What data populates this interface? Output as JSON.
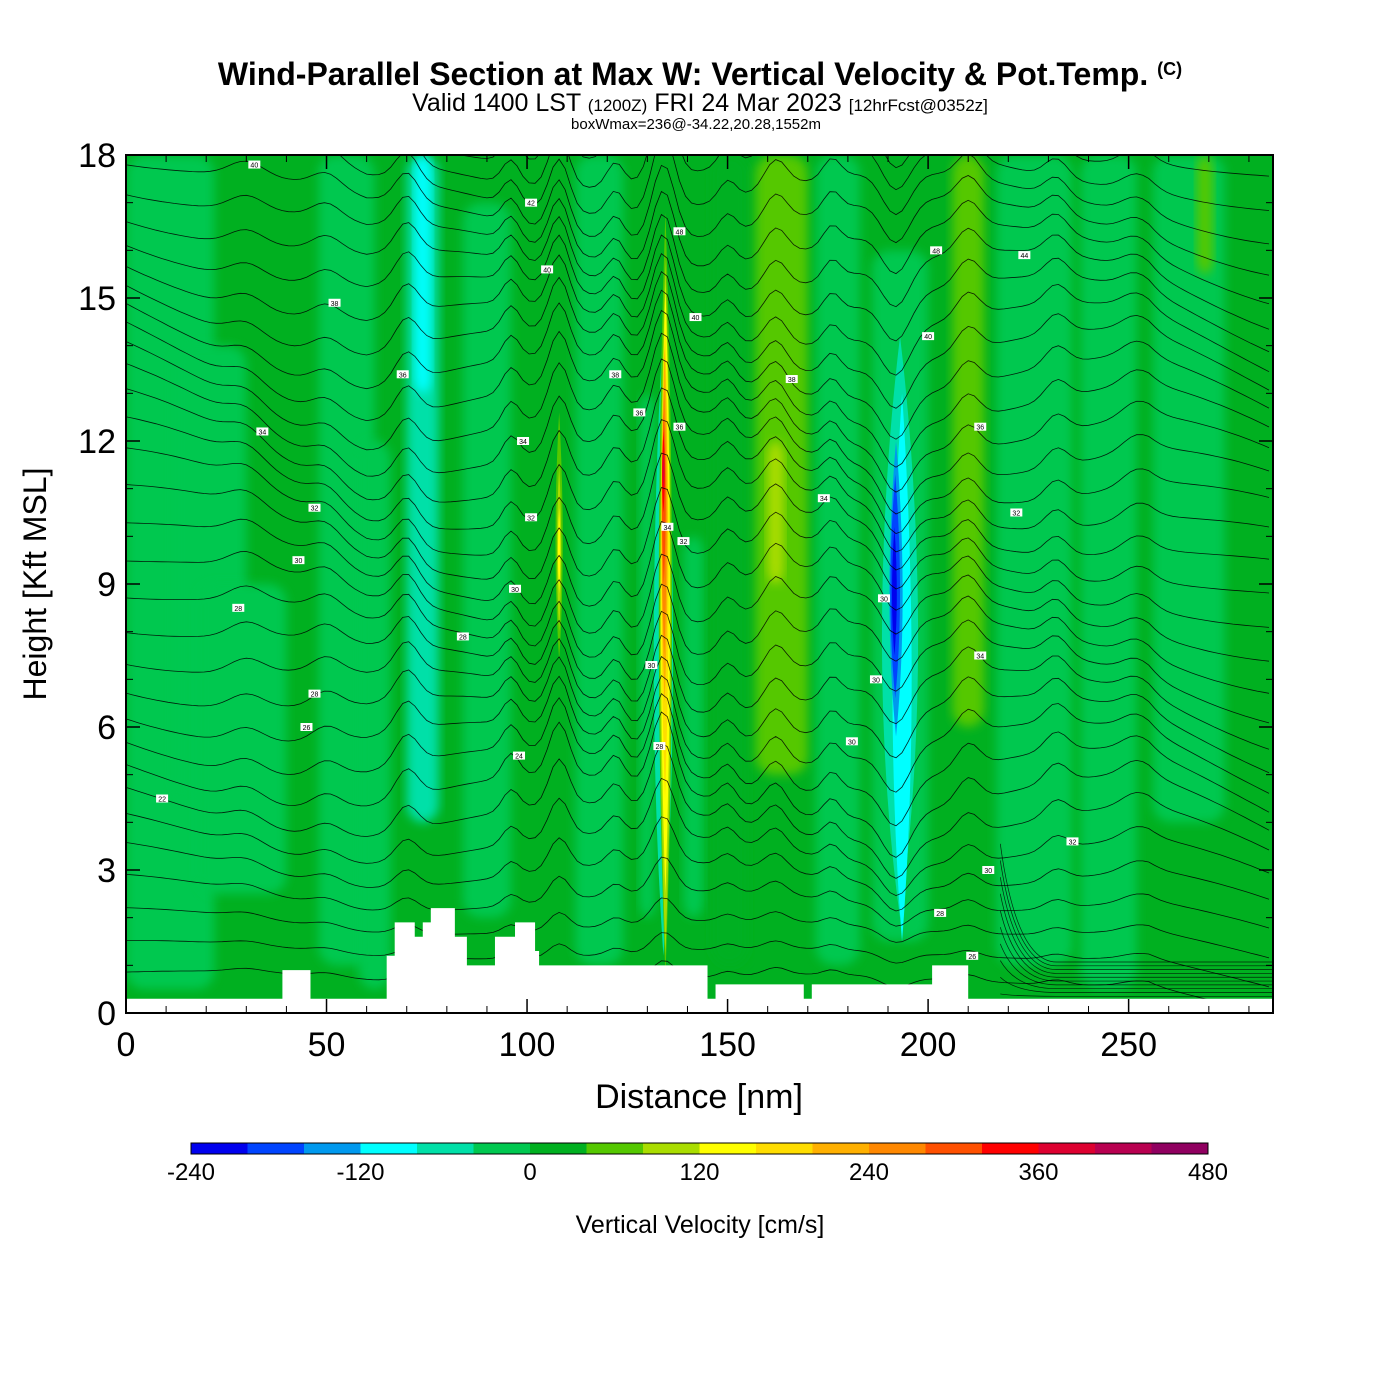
{
  "header": {
    "title": "Wind-Parallel Section at Max W: Vertical Velocity & Pot.Temp.",
    "copyright": "(C)",
    "valid_prefix": "Valid 1400 LST",
    "valid_z": "(1200Z)",
    "valid_date": "FRI 24 Mar 2023",
    "forecast": "[12hrFcst@0352z]",
    "boxwmax": "boxWmax=236@-34.22,20.28,1552m"
  },
  "chart_data": {
    "type": "heatmap",
    "title": "Wind-Parallel Section at Max W: Vertical Velocity & Pot.Temp.",
    "xlabel": "Distance [nm]",
    "ylabel": "Height [Kft MSL]",
    "xlim": [
      0,
      286
    ],
    "ylim": [
      0,
      18
    ],
    "x_ticks": [
      "0",
      "50",
      "100",
      "150",
      "200",
      "250"
    ],
    "y_ticks": [
      "0",
      "3",
      "6",
      "9",
      "12",
      "15",
      "18"
    ],
    "colorbar": {
      "label": "Vertical Velocity [cm/s]",
      "levels": [
        -240,
        -200,
        -160,
        -120,
        -80,
        -40,
        0,
        40,
        80,
        120,
        160,
        200,
        240,
        280,
        320,
        360,
        400,
        440,
        480
      ],
      "tick_labels": [
        "-240",
        "-120",
        "0",
        "120",
        "240",
        "360",
        "480"
      ],
      "colors": [
        "#0000ee",
        "#0044ff",
        "#0099ee",
        "#00ffff",
        "#00e0a8",
        "#00c850",
        "#00b020",
        "#55c800",
        "#aadd00",
        "#ffff00",
        "#ffdd00",
        "#ffb000",
        "#ff8800",
        "#ff5000",
        "#ff0000",
        "#dd0030",
        "#b80050",
        "#900060"
      ]
    },
    "features": [
      {
        "name": "updraft core",
        "x": 134,
        "base_kft": 3,
        "top_kft": 16.5,
        "max_cms": 400
      },
      {
        "name": "updraft narrow",
        "x": 108,
        "base_kft": 7.5,
        "top_kft": 12.5,
        "max_cms": 130
      },
      {
        "name": "downdraft core",
        "x": 192,
        "base_kft": 6.5,
        "top_kft": 11,
        "min_cms": -240
      },
      {
        "name": "downdraft tail",
        "x": 193,
        "base_kft": 1.5,
        "top_kft": 14,
        "min_cms": -120
      }
    ],
    "terrain_profile": {
      "x": [
        0,
        36,
        39,
        43,
        46,
        63,
        65,
        67,
        70,
        72,
        74,
        76,
        80,
        82,
        83,
        85,
        91,
        92,
        97,
        100,
        102,
        103,
        144,
        145,
        147,
        168,
        169,
        171,
        200,
        201,
        208,
        210,
        286
      ],
      "kft": [
        0.3,
        0.3,
        0.9,
        0.9,
        0.3,
        0.3,
        1.2,
        1.9,
        1.9,
        1.6,
        1.9,
        2.2,
        2.2,
        1.6,
        1.6,
        1.0,
        1.0,
        1.6,
        1.9,
        1.9,
        1.3,
        1.0,
        1.0,
        0.3,
        0.6,
        0.6,
        0.3,
        0.6,
        0.6,
        1.0,
        1.0,
        0.3,
        0.3
      ]
    },
    "isentrope_labels": [
      {
        "text": "40",
        "x": 32,
        "kft": 17.8
      },
      {
        "text": "42",
        "x": 101,
        "kft": 17.0
      },
      {
        "text": "40",
        "x": 105,
        "kft": 15.6
      },
      {
        "text": "48",
        "x": 138,
        "kft": 16.4
      },
      {
        "text": "48",
        "x": 202,
        "kft": 16.0
      },
      {
        "text": "44",
        "x": 224,
        "kft": 15.9
      },
      {
        "text": "38",
        "x": 52,
        "kft": 14.9
      },
      {
        "text": "40",
        "x": 142,
        "kft": 14.6
      },
      {
        "text": "40",
        "x": 200,
        "kft": 14.2
      },
      {
        "text": "36",
        "x": 69,
        "kft": 13.4
      },
      {
        "text": "38",
        "x": 122,
        "kft": 13.4
      },
      {
        "text": "38",
        "x": 166,
        "kft": 13.3
      },
      {
        "text": "36",
        "x": 128,
        "kft": 12.6
      },
      {
        "text": "36",
        "x": 138,
        "kft": 12.3
      },
      {
        "text": "34",
        "x": 34,
        "kft": 12.2
      },
      {
        "text": "36",
        "x": 213,
        "kft": 12.3
      },
      {
        "text": "34",
        "x": 99,
        "kft": 12.0
      },
      {
        "text": "34",
        "x": 174,
        "kft": 10.8
      },
      {
        "text": "32",
        "x": 47,
        "kft": 10.6
      },
      {
        "text": "32",
        "x": 101,
        "kft": 10.4
      },
      {
        "text": "34",
        "x": 135,
        "kft": 10.2
      },
      {
        "text": "32",
        "x": 222,
        "kft": 10.5
      },
      {
        "text": "32",
        "x": 139,
        "kft": 9.9
      },
      {
        "text": "30",
        "x": 43,
        "kft": 9.5
      },
      {
        "text": "30",
        "x": 97,
        "kft": 8.9
      },
      {
        "text": "30",
        "x": 189,
        "kft": 8.7
      },
      {
        "text": "28",
        "x": 28,
        "kft": 8.5
      },
      {
        "text": "28",
        "x": 84,
        "kft": 7.9
      },
      {
        "text": "34",
        "x": 213,
        "kft": 7.5
      },
      {
        "text": "30",
        "x": 131,
        "kft": 7.3
      },
      {
        "text": "30",
        "x": 187,
        "kft": 7.0
      },
      {
        "text": "28",
        "x": 47,
        "kft": 6.7
      },
      {
        "text": "26",
        "x": 45,
        "kft": 6.0
      },
      {
        "text": "30",
        "x": 181,
        "kft": 5.7
      },
      {
        "text": "28",
        "x": 133,
        "kft": 5.6
      },
      {
        "text": "24",
        "x": 98,
        "kft": 5.4
      },
      {
        "text": "22",
        "x": 9,
        "kft": 4.5
      },
      {
        "text": "32",
        "x": 236,
        "kft": 3.6
      },
      {
        "text": "30",
        "x": 215,
        "kft": 3.0
      },
      {
        "text": "28",
        "x": 203,
        "kft": 2.1
      },
      {
        "text": "26",
        "x": 211,
        "kft": 1.2
      }
    ]
  }
}
